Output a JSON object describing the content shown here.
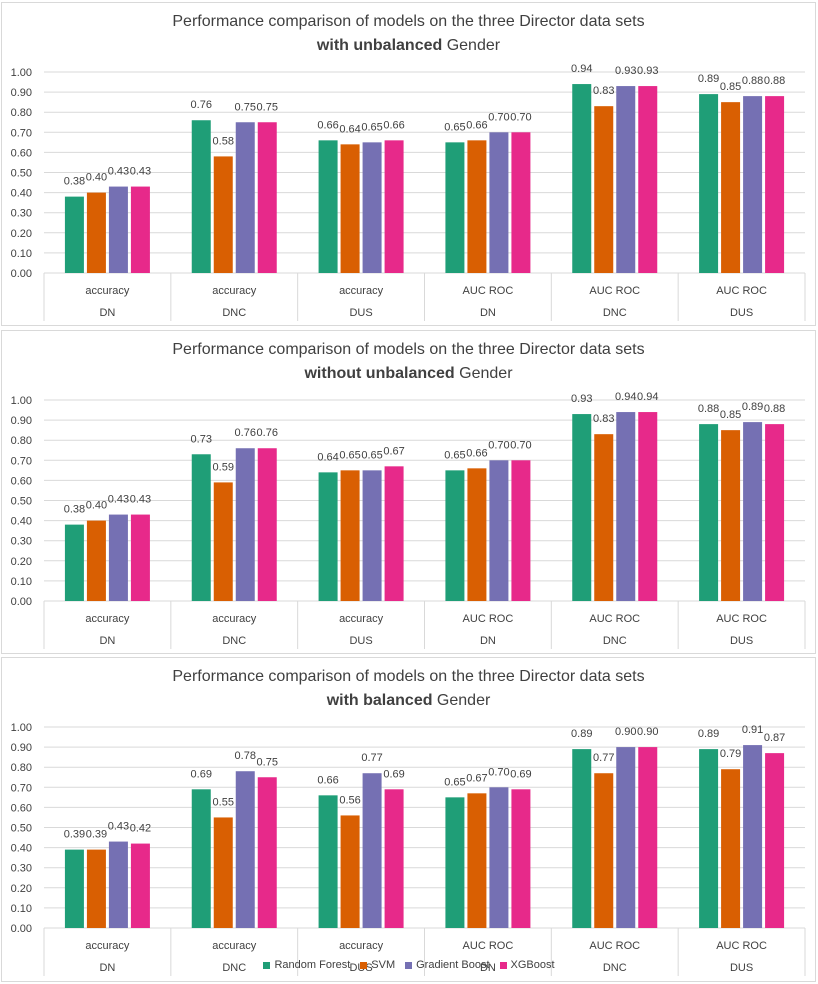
{
  "colors": {
    "series": [
      "#1f9e77",
      "#d95f02",
      "#7570b3",
      "#e7298a"
    ],
    "grid": "#d9d9d9",
    "text": "#404040"
  },
  "legend": [
    "Random Forest",
    "SVM",
    "Gradient Boost",
    "XGBoost"
  ],
  "panels": [
    {
      "title_line1": "Performance comparison of models on the three Director data sets",
      "title_bold": "with unbalanced",
      "title_rest": " Gender"
    },
    {
      "title_line1": "Performance comparison of models on the three Director data sets",
      "title_bold": "without unbalanced",
      "title_rest": " Gender"
    },
    {
      "title_line1": "Performance comparison of models on the three Director data sets",
      "title_bold": "with balanced",
      "title_rest": " Gender"
    }
  ],
  "chart_data": [
    {
      "type": "bar",
      "title": "Performance comparison of models on the three Director data sets with unbalanced Gender",
      "categories": [
        [
          "accuracy",
          "DN"
        ],
        [
          "accuracy",
          "DNC"
        ],
        [
          "accuracy",
          "DUS"
        ],
        [
          "AUC ROC",
          "DN"
        ],
        [
          "AUC ROC",
          "DNC"
        ],
        [
          "AUC ROC",
          "DUS"
        ]
      ],
      "ylim": [
        0,
        1.0
      ],
      "yticks": [
        "0.00",
        "0.10",
        "0.20",
        "0.30",
        "0.40",
        "0.50",
        "0.60",
        "0.70",
        "0.80",
        "0.90",
        "1.00"
      ],
      "series": [
        {
          "name": "Random Forest",
          "values": [
            0.38,
            0.76,
            0.66,
            0.65,
            0.94,
            0.89
          ],
          "labels": [
            "0.38",
            "0.76",
            "0.66",
            "0.65",
            "0.94",
            "0.89"
          ]
        },
        {
          "name": "SVM",
          "values": [
            0.4,
            0.58,
            0.64,
            0.66,
            0.83,
            0.85
          ],
          "labels": [
            "0.40",
            "0.58",
            "0.64",
            "0.66",
            "0.83",
            "0.85"
          ]
        },
        {
          "name": "Gradient Boost",
          "values": [
            0.43,
            0.75,
            0.65,
            0.7,
            0.93,
            0.88
          ],
          "labels": [
            "0.43",
            "0.75",
            "0.65",
            "0.70",
            "0.93",
            "0.88"
          ]
        },
        {
          "name": "XGBoost",
          "values": [
            0.43,
            0.75,
            0.66,
            0.7,
            0.93,
            0.88
          ],
          "labels": [
            "0.43",
            "0.75",
            "0.66",
            "0.70",
            "0.93",
            "0.88"
          ]
        }
      ]
    },
    {
      "type": "bar",
      "title": "Performance comparison of models on the three Director data sets without unbalanced Gender",
      "categories": [
        [
          "accuracy",
          "DN"
        ],
        [
          "accuracy",
          "DNC"
        ],
        [
          "accuracy",
          "DUS"
        ],
        [
          "AUC ROC",
          "DN"
        ],
        [
          "AUC ROC",
          "DNC"
        ],
        [
          "AUC ROC",
          "DUS"
        ]
      ],
      "ylim": [
        0,
        1.0
      ],
      "yticks": [
        "0.00",
        "0.10",
        "0.20",
        "0.30",
        "0.40",
        "0.50",
        "0.60",
        "0.70",
        "0.80",
        "0.90",
        "1.00"
      ],
      "series": [
        {
          "name": "Random Forest",
          "values": [
            0.38,
            0.73,
            0.64,
            0.65,
            0.93,
            0.88
          ],
          "labels": [
            "0.38",
            "0.73",
            "0.64",
            "0.65",
            "0.93",
            "0.88"
          ]
        },
        {
          "name": "SVM",
          "values": [
            0.4,
            0.59,
            0.65,
            0.66,
            0.83,
            0.85
          ],
          "labels": [
            "0.40",
            "0.59",
            "0.65",
            "0.66",
            "0.83",
            "0.85"
          ]
        },
        {
          "name": "Gradient Boost",
          "values": [
            0.43,
            0.76,
            0.65,
            0.7,
            0.94,
            0.89
          ],
          "labels": [
            "0.43",
            "0.76",
            "0.65",
            "0.70",
            "0.94",
            "0.89"
          ]
        },
        {
          "name": "XGBoost",
          "values": [
            0.43,
            0.76,
            0.67,
            0.7,
            0.94,
            0.88
          ],
          "labels": [
            "0.43",
            "0.76",
            "0.67",
            "0.70",
            "0.94",
            "0.88"
          ]
        }
      ]
    },
    {
      "type": "bar",
      "title": "Performance comparison of models on the three Director data sets with balanced Gender",
      "categories": [
        [
          "accuracy",
          "DN"
        ],
        [
          "accuracy",
          "DNC"
        ],
        [
          "accuracy",
          "DUS"
        ],
        [
          "AUC ROC",
          "DN"
        ],
        [
          "AUC ROC",
          "DNC"
        ],
        [
          "AUC ROC",
          "DUS"
        ]
      ],
      "ylim": [
        0,
        1.0
      ],
      "yticks": [
        "0.00",
        "0.10",
        "0.20",
        "0.30",
        "0.40",
        "0.50",
        "0.60",
        "0.70",
        "0.80",
        "0.90",
        "1.00"
      ],
      "series": [
        {
          "name": "Random Forest",
          "values": [
            0.39,
            0.69,
            0.66,
            0.65,
            0.89,
            0.89
          ],
          "labels": [
            "0.39",
            "0.69",
            "0.66",
            "0.65",
            "0.89",
            "0.89"
          ]
        },
        {
          "name": "SVM",
          "values": [
            0.39,
            0.55,
            0.56,
            0.67,
            0.77,
            0.79
          ],
          "labels": [
            "0.39",
            "0.55",
            "0.56",
            "0.67",
            "0.77",
            "0.79"
          ]
        },
        {
          "name": "Gradient Boost",
          "values": [
            0.43,
            0.78,
            0.77,
            0.7,
            0.9,
            0.91
          ],
          "labels": [
            "0.43",
            "0.78",
            "0.77",
            "0.70",
            "0.90",
            "0.91"
          ]
        },
        {
          "name": "XGBoost",
          "values": [
            0.42,
            0.75,
            0.69,
            0.69,
            0.9,
            0.87
          ],
          "labels": [
            "0.42",
            "0.75",
            "0.69",
            "0.69",
            "0.90",
            "0.87"
          ]
        }
      ]
    }
  ]
}
